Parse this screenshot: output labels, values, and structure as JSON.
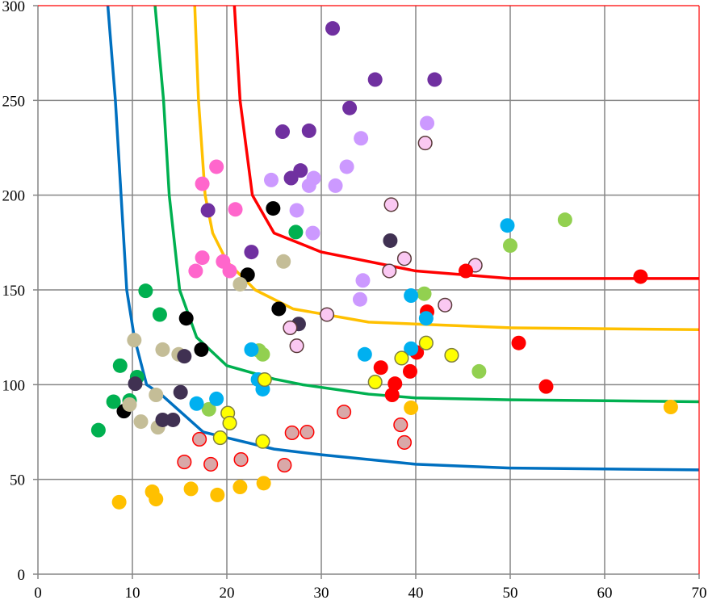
{
  "chart_data": {
    "type": "scatter",
    "title": "",
    "xlabel": "",
    "ylabel": "",
    "xlim": [
      0,
      70
    ],
    "ylim": [
      0,
      300
    ],
    "xticks": [
      0,
      10,
      20,
      30,
      40,
      50,
      60,
      70
    ],
    "yticks": [
      0,
      50,
      100,
      150,
      200,
      250,
      300
    ],
    "grid": true,
    "legend": "none",
    "curves": [
      {
        "color": "#0070C0",
        "points": [
          [
            7.4,
            300
          ],
          [
            8.2,
            250
          ],
          [
            8.8,
            200
          ],
          [
            9.4,
            150
          ],
          [
            10.2,
            125
          ],
          [
            11.5,
            100
          ],
          [
            13,
            95
          ],
          [
            17.5,
            75
          ],
          [
            20,
            72
          ],
          [
            25,
            66
          ],
          [
            30,
            63
          ],
          [
            40,
            58
          ],
          [
            50,
            56
          ],
          [
            70,
            55
          ]
        ]
      },
      {
        "color": "#00B050",
        "points": [
          [
            12.4,
            300
          ],
          [
            13.3,
            250
          ],
          [
            13.9,
            200
          ],
          [
            15,
            150
          ],
          [
            16.8,
            125
          ],
          [
            20,
            110
          ],
          [
            25,
            103
          ],
          [
            28,
            100
          ],
          [
            35,
            95
          ],
          [
            40,
            93
          ],
          [
            50,
            92
          ],
          [
            70,
            91
          ]
        ]
      },
      {
        "color": "#FFC000",
        "points": [
          [
            16.6,
            300
          ],
          [
            17,
            250
          ],
          [
            17.7,
            200
          ],
          [
            18.5,
            180
          ],
          [
            20,
            165
          ],
          [
            23,
            150
          ],
          [
            27,
            140
          ],
          [
            35,
            133
          ],
          [
            50,
            130
          ],
          [
            70,
            129
          ]
        ]
      },
      {
        "color": "#FF0000",
        "points": [
          [
            20.8,
            300
          ],
          [
            21.4,
            250
          ],
          [
            22.7,
            200
          ],
          [
            25,
            180
          ],
          [
            30,
            170
          ],
          [
            40,
            160
          ],
          [
            50,
            156
          ],
          [
            70,
            156
          ]
        ]
      }
    ],
    "series": [
      {
        "color": "#7030A0",
        "border": "none",
        "points": [
          [
            31.2,
            288
          ],
          [
            35.7,
            261
          ],
          [
            42,
            261
          ],
          [
            33,
            246
          ],
          [
            25.9,
            233.5
          ],
          [
            28.7,
            234
          ],
          [
            27.8,
            213
          ],
          [
            26.8,
            209
          ],
          [
            18,
            192
          ],
          [
            22.6,
            170
          ]
        ]
      },
      {
        "color": "#CC99FF",
        "border": "none",
        "points": [
          [
            34.2,
            230
          ],
          [
            41.2,
            238
          ],
          [
            32.7,
            215
          ],
          [
            29.2,
            209
          ],
          [
            28.7,
            205
          ],
          [
            24.7,
            208
          ],
          [
            31.5,
            205
          ],
          [
            27.4,
            192
          ],
          [
            29.1,
            180
          ],
          [
            34.4,
            155
          ],
          [
            34.1,
            145
          ]
        ]
      },
      {
        "color": "#FF66CC",
        "border": "none",
        "points": [
          [
            18.9,
            215
          ],
          [
            17.4,
            206
          ],
          [
            20.9,
            192.5
          ],
          [
            17.4,
            167
          ],
          [
            16.7,
            160
          ],
          [
            19.6,
            165
          ],
          [
            20.3,
            160
          ]
        ]
      },
      {
        "color": "#000000",
        "border": "none",
        "points": [
          [
            24.9,
            193
          ],
          [
            22.2,
            158
          ],
          [
            25.5,
            140
          ],
          [
            15.7,
            135
          ],
          [
            17.3,
            118.5
          ],
          [
            9.1,
            86
          ]
        ]
      },
      {
        "color": "#00B050",
        "border": "none",
        "points": [
          [
            27.3,
            180.5
          ],
          [
            11.4,
            149.5
          ],
          [
            12.9,
            137
          ],
          [
            8.7,
            110
          ],
          [
            10.5,
            104
          ],
          [
            8,
            91
          ],
          [
            9.7,
            91.6
          ],
          [
            6.4,
            76
          ]
        ]
      },
      {
        "color": "#C4BD97",
        "border": "none",
        "points": [
          [
            26,
            165
          ],
          [
            21.4,
            153
          ],
          [
            10.2,
            123.5
          ],
          [
            13.2,
            118.5
          ],
          [
            14.9,
            116
          ],
          [
            12.5,
            94.6
          ],
          [
            9.7,
            89.5
          ],
          [
            10.9,
            80.5
          ],
          [
            12.7,
            77.5
          ]
        ]
      },
      {
        "color": "#403152",
        "border": "none",
        "points": [
          [
            37.3,
            176
          ],
          [
            27.6,
            132
          ],
          [
            15.5,
            115
          ],
          [
            10.3,
            100.5
          ],
          [
            15.1,
            96
          ],
          [
            13.2,
            81.4
          ],
          [
            14.3,
            81.4
          ]
        ]
      },
      {
        "color": "#FAC8F2",
        "border": "#5A3A3A",
        "points": [
          [
            37.4,
            195
          ],
          [
            38.8,
            166.5
          ],
          [
            37.2,
            160
          ],
          [
            46.3,
            163
          ],
          [
            41,
            227.5
          ],
          [
            30.6,
            137
          ],
          [
            43.1,
            142
          ],
          [
            26.7,
            130
          ],
          [
            27.4,
            120.5
          ]
        ]
      },
      {
        "color": "#FF0000",
        "border": "none",
        "points": [
          [
            45.3,
            160
          ],
          [
            63.8,
            157
          ],
          [
            41.2,
            138.5
          ],
          [
            50.9,
            122
          ],
          [
            40.1,
            117
          ],
          [
            36.3,
            109
          ],
          [
            39.4,
            107
          ],
          [
            37.8,
            100.5
          ],
          [
            37.5,
            94.6
          ],
          [
            53.8,
            99
          ]
        ]
      },
      {
        "color": "#92D050",
        "border": "none",
        "points": [
          [
            55.8,
            187
          ],
          [
            50,
            173.4
          ],
          [
            40.9,
            148
          ],
          [
            23.4,
            118
          ],
          [
            23.8,
            116
          ],
          [
            46.7,
            107
          ],
          [
            18.1,
            87
          ]
        ]
      },
      {
        "color": "#00B0F0",
        "border": "none",
        "points": [
          [
            49.7,
            184
          ],
          [
            39.5,
            147
          ],
          [
            41.1,
            135
          ],
          [
            34.6,
            116
          ],
          [
            22.6,
            118.5
          ],
          [
            39.5,
            119
          ],
          [
            23.3,
            102.7
          ],
          [
            23.8,
            97.6
          ],
          [
            18.9,
            92.5
          ],
          [
            16.8,
            90
          ]
        ]
      },
      {
        "color": "#FFFF00",
        "border": "#7F7F3F",
        "points": [
          [
            41.1,
            122
          ],
          [
            43.8,
            115.5
          ],
          [
            38.5,
            114
          ],
          [
            35.7,
            101.4
          ],
          [
            24,
            102.7
          ],
          [
            20.1,
            85
          ],
          [
            20.3,
            79.7
          ],
          [
            19.3,
            72
          ],
          [
            23.8,
            70
          ]
        ]
      },
      {
        "color": "#FFC000",
        "border": "none",
        "points": [
          [
            39.5,
            87.8
          ],
          [
            67,
            88.2
          ],
          [
            23.9,
            48
          ],
          [
            21.4,
            46
          ],
          [
            16.2,
            45
          ],
          [
            12.1,
            43.5
          ],
          [
            12.5,
            39.6
          ],
          [
            19,
            41.8
          ],
          [
            8.6,
            38
          ]
        ]
      },
      {
        "color": "#D9A8A8",
        "border": "#FF0000",
        "points": [
          [
            32.4,
            85.6
          ],
          [
            38.4,
            78.8
          ],
          [
            38.8,
            69.5
          ],
          [
            26.9,
            74.6
          ],
          [
            28.5,
            75
          ],
          [
            17.1,
            71.2
          ],
          [
            15.5,
            59.2
          ],
          [
            18.3,
            58
          ],
          [
            21.5,
            60.5
          ],
          [
            26.1,
            57.5
          ]
        ]
      }
    ]
  }
}
